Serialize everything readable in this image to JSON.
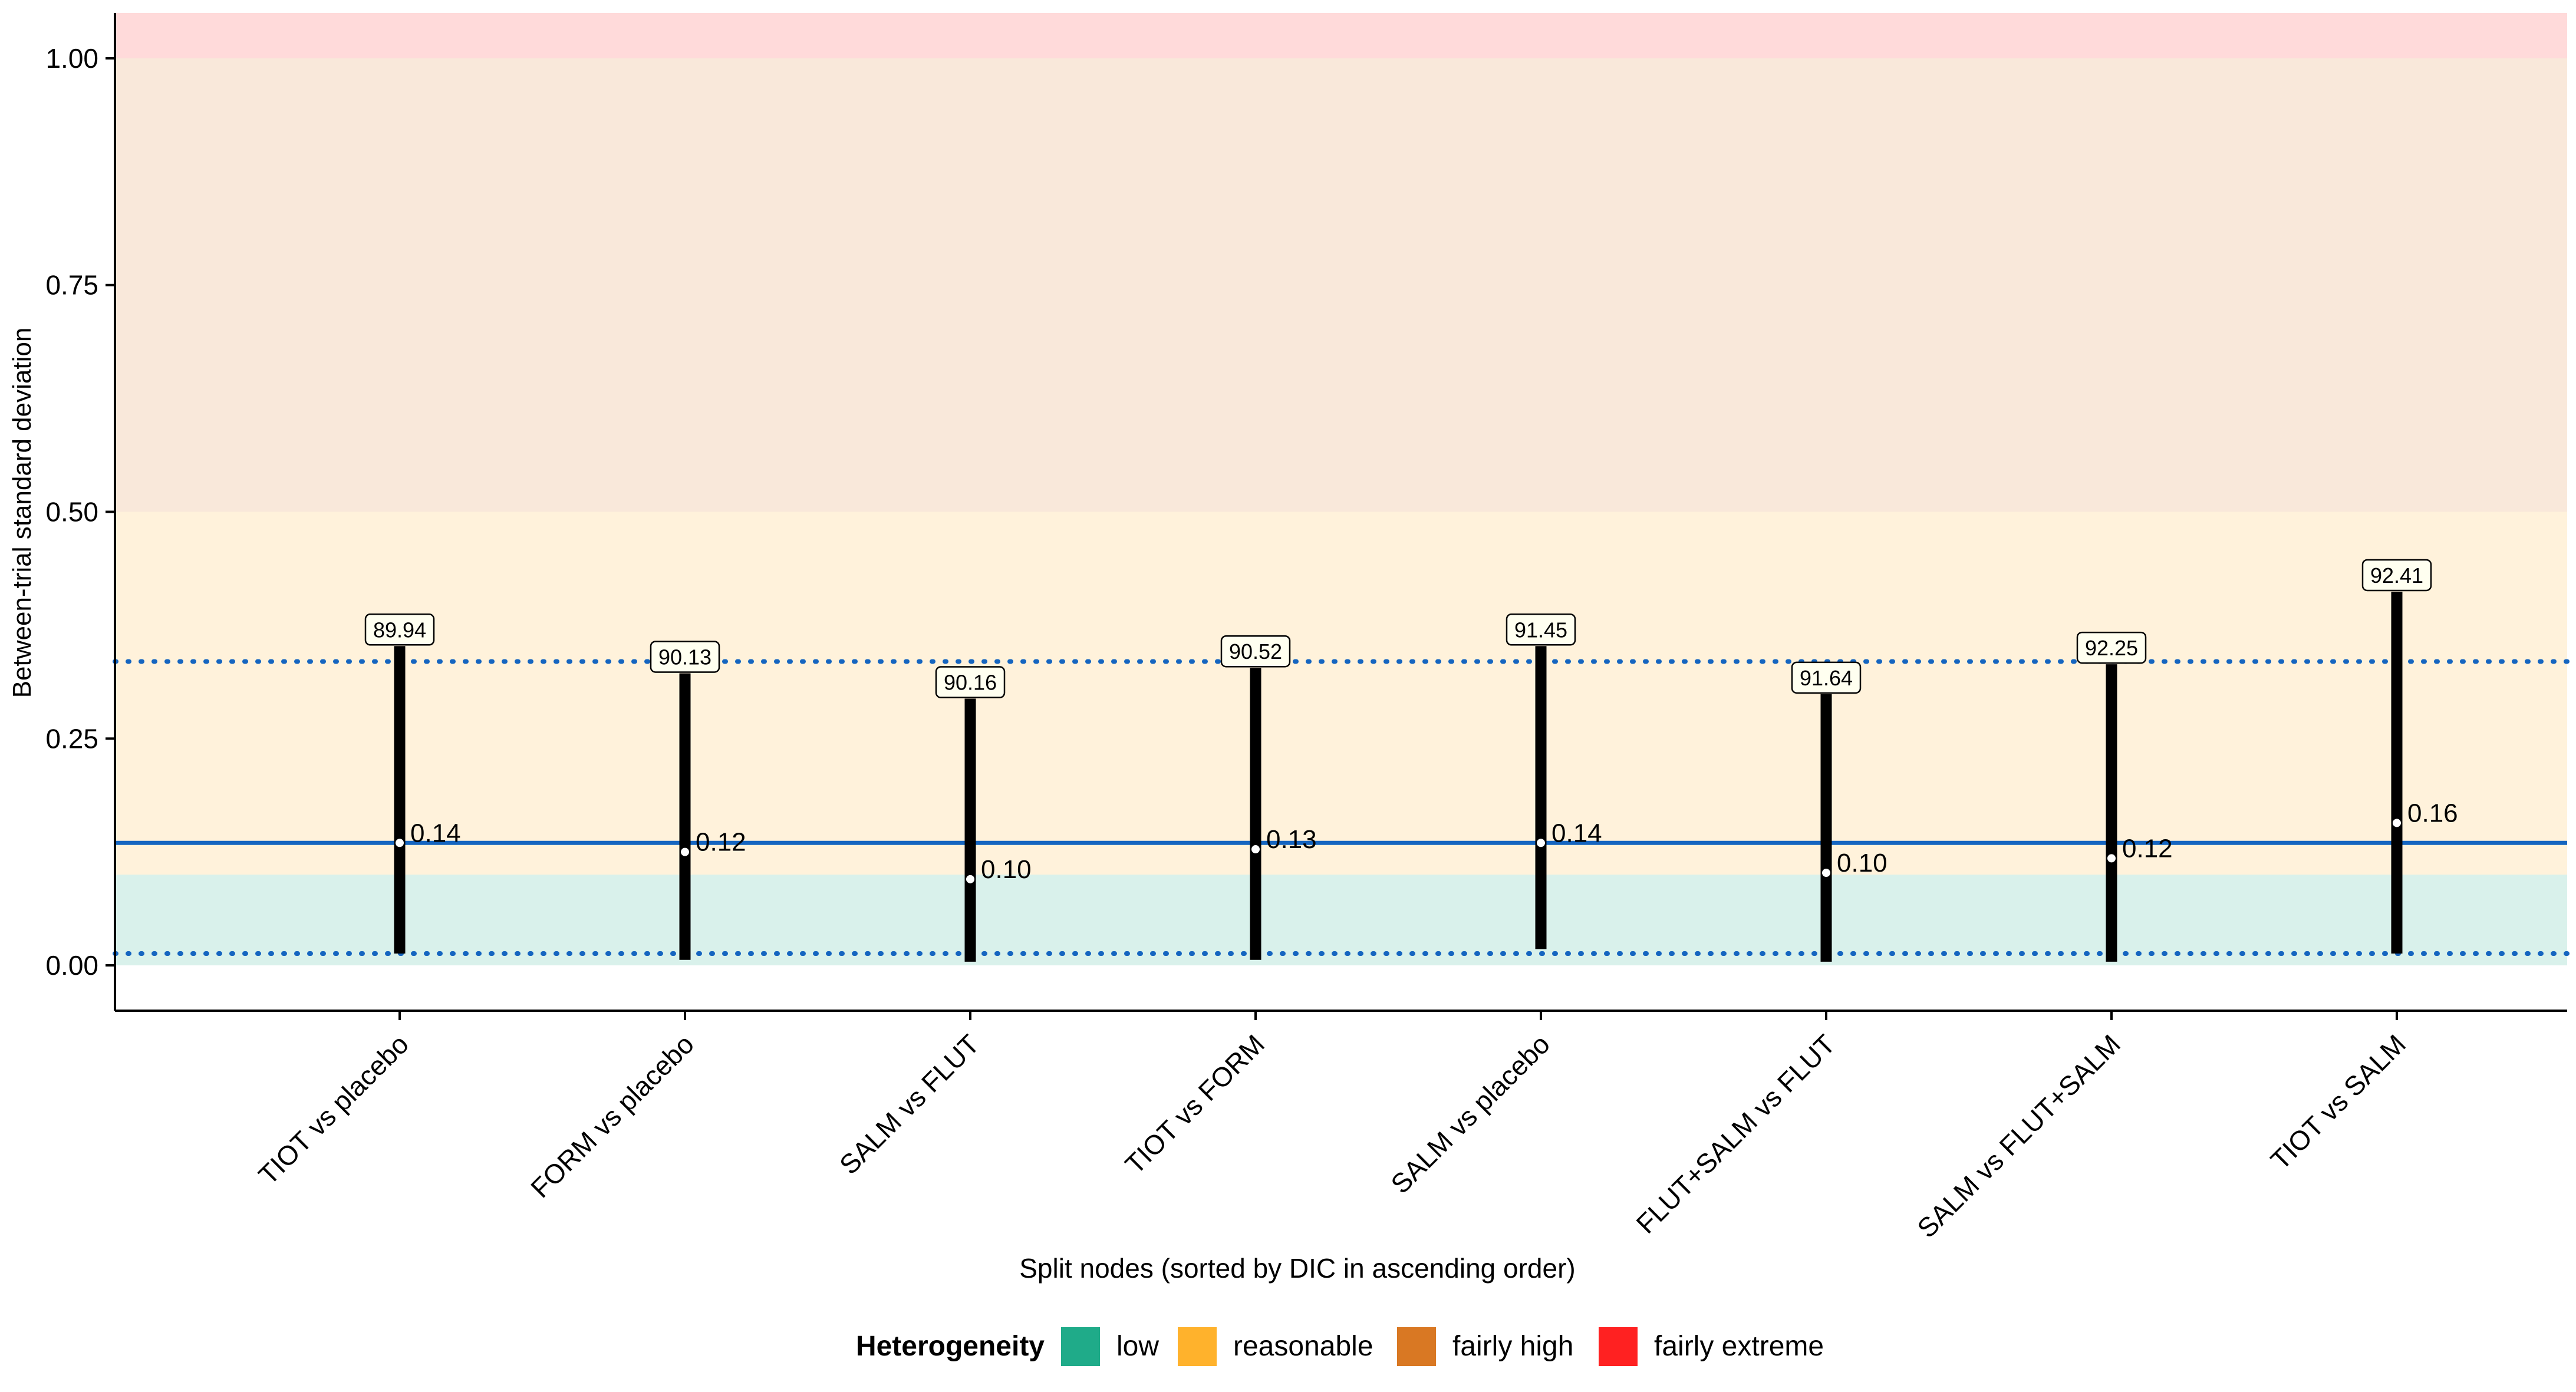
{
  "chart_data": {
    "type": "interval",
    "title": "",
    "xlabel": "Split nodes (sorted by DIC in ascending order)",
    "ylabel": "Between-trial standard deviation",
    "ylim": [
      -0.05,
      1.05
    ],
    "yticks": [
      0.0,
      0.25,
      0.5,
      0.75,
      1.0
    ],
    "ytick_labels": [
      "0.00",
      "0.25",
      "0.50",
      "0.75",
      "1.00"
    ],
    "grid": false,
    "categories": [
      "TIOT vs placebo",
      "FORM vs placebo",
      "SALM vs FLUT",
      "TIOT vs FORM",
      "SALM vs placebo",
      "FLUT+SALM vs FLUT",
      "SALM vs FLUT+SALM",
      "TIOT vs SALM"
    ],
    "series": [
      {
        "median": [
          0.14,
          0.12,
          0.1,
          0.13,
          0.14,
          0.1,
          0.12,
          0.16
        ],
        "point_labels": [
          "0.14",
          "0.12",
          "0.10",
          "0.13",
          "0.14",
          "0.10",
          "0.12",
          "0.16"
        ],
        "median_values": [
          0.135,
          0.125,
          0.095,
          0.128,
          0.135,
          0.102,
          0.118,
          0.157
        ],
        "lower": [
          0.013,
          0.006,
          0.004,
          0.006,
          0.018,
          0.004,
          0.004,
          0.013
        ],
        "upper": [
          0.352,
          0.322,
          0.294,
          0.328,
          0.352,
          0.299,
          0.332,
          0.412
        ]
      }
    ],
    "dic_labels": [
      "89.94",
      "90.13",
      "90.16",
      "90.52",
      "91.45",
      "91.64",
      "92.25",
      "92.41"
    ],
    "reference_lines": {
      "solid": 0.135,
      "dotted": [
        0.335,
        0.013
      ],
      "solid_color": "#1565C0",
      "dotted_color": "#1565C0"
    },
    "bands": [
      {
        "name": "low",
        "from": 0.0,
        "to": 0.1,
        "color": "#1FAB89",
        "opacity": 0.17
      },
      {
        "name": "reasonable",
        "from": 0.1,
        "to": 0.5,
        "color": "#FFB22C",
        "opacity": 0.17
      },
      {
        "name": "fairly high",
        "from": 0.5,
        "to": 1.0,
        "color": "#D97823",
        "opacity": 0.17
      },
      {
        "name": "fairly extreme",
        "from": 1.0,
        "to": 1.05,
        "color": "#FF2121",
        "opacity": 0.17
      }
    ],
    "legend": {
      "title": "Heterogeneity",
      "position": "bottom",
      "items": [
        {
          "label": "low",
          "color": "#1FAB89"
        },
        {
          "label": "reasonable",
          "color": "#FFB22C"
        },
        {
          "label": "fairly high",
          "color": "#D97823"
        },
        {
          "label": "fairly extreme",
          "color": "#FF2121"
        }
      ]
    }
  }
}
